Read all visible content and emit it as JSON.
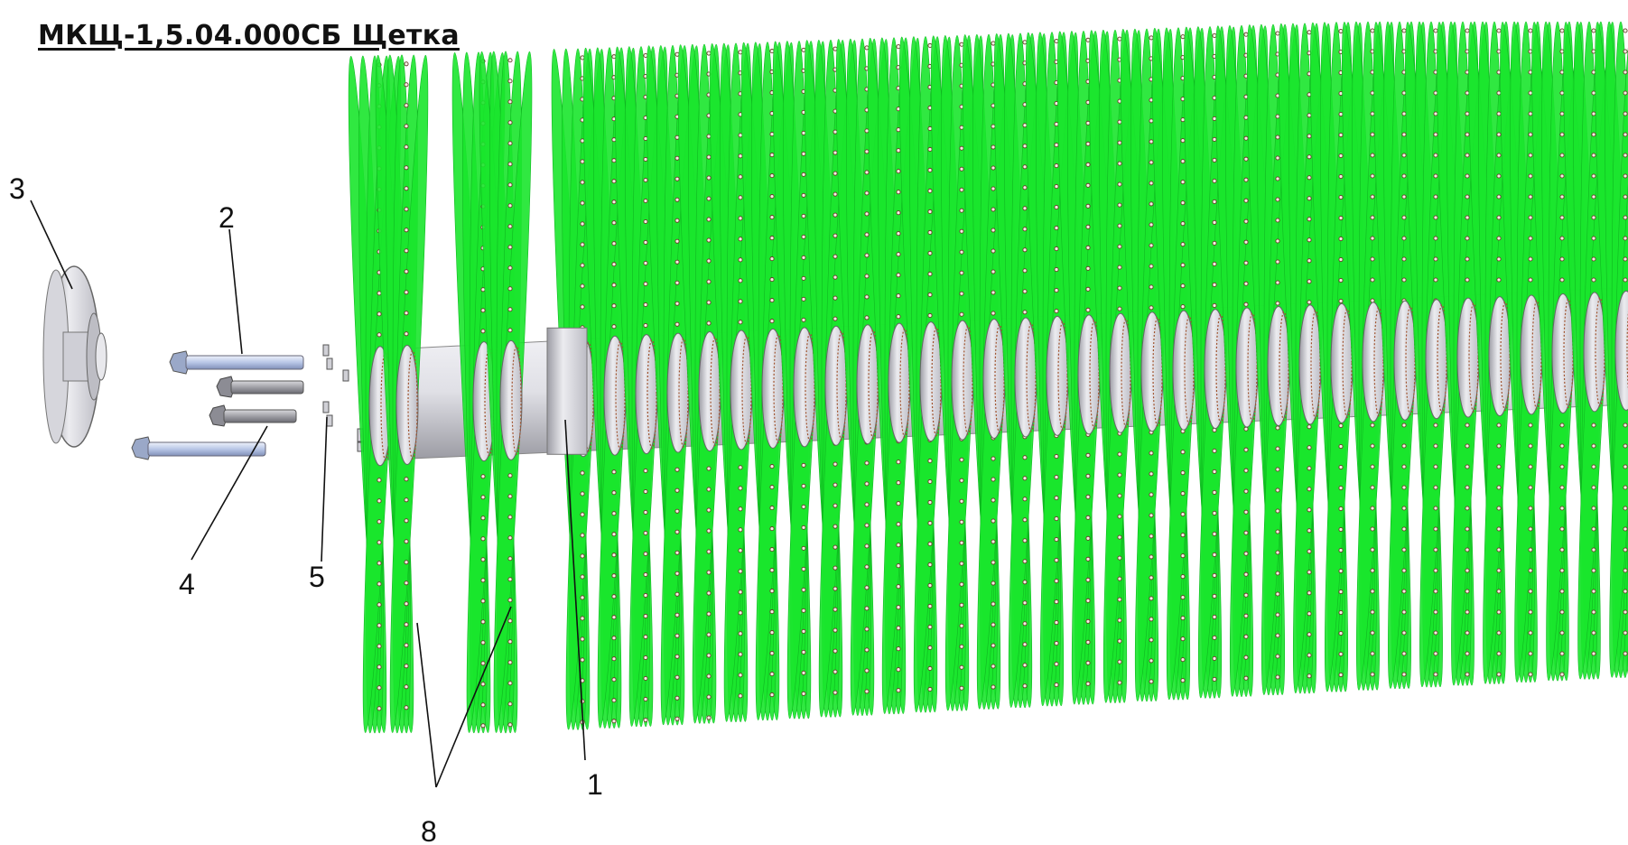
{
  "title": "МКЩ-1,5.04.000СБ Щетка",
  "callouts": [
    {
      "id": "1",
      "text": "1"
    },
    {
      "id": "2",
      "text": "2"
    },
    {
      "id": "3",
      "text": "3"
    },
    {
      "id": "4",
      "text": "4"
    },
    {
      "id": "5",
      "text": "5"
    },
    {
      "id": "8",
      "text": "8"
    }
  ],
  "colors": {
    "bristle": "#19e62c",
    "bristle_edge": "#0fb820",
    "bristle_dot": "#6a3a2a",
    "shaft": "#e4e4e8",
    "shaft_shade": "#a8a8b0",
    "bolt_blue": "#c8d4ec",
    "bolt_grey": "#a0a0a8",
    "leader": "#111111"
  }
}
